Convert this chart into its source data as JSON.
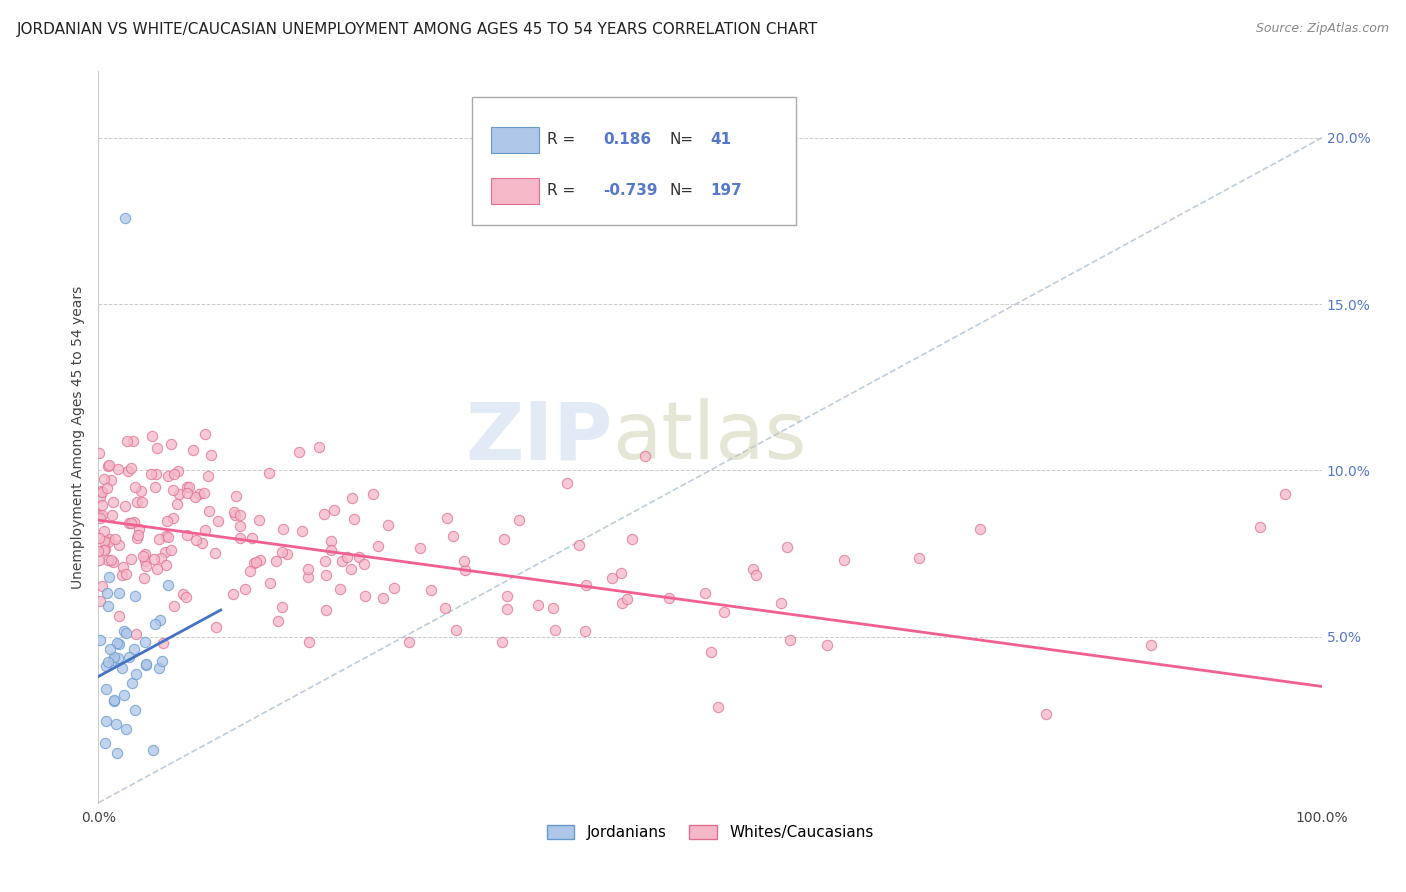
{
  "title": "JORDANIAN VS WHITE/CAUCASIAN UNEMPLOYMENT AMONG AGES 45 TO 54 YEARS CORRELATION CHART",
  "source": "Source: ZipAtlas.com",
  "ylabel": "Unemployment Among Ages 45 to 54 years",
  "xlim": [
    0.0,
    1.0
  ],
  "ylim": [
    0.0,
    0.22
  ],
  "xticks": [
    0.0,
    0.1,
    0.2,
    0.3,
    0.4,
    0.5,
    0.6,
    0.7,
    0.8,
    0.9,
    1.0
  ],
  "xticklabels": [
    "0.0%",
    "",
    "",
    "",
    "",
    "",
    "",
    "",
    "",
    "",
    "100.0%"
  ],
  "yticks": [
    0.0,
    0.05,
    0.1,
    0.15,
    0.2
  ],
  "yticklabels": [
    "",
    "5.0%",
    "10.0%",
    "15.0%",
    "20.0%"
  ],
  "jordanian_fill": "#aec6e8",
  "jordanian_edge": "#6699cc",
  "caucasian_fill": "#f4b8c8",
  "caucasian_edge": "#e07090",
  "jordanian_trend_color": "#4472c4",
  "caucasian_trend_color": "#f06090",
  "diagonal_color": "#b8c8d8",
  "tick_color": "#5577cc",
  "R_jordanian": 0.186,
  "N_jordanian": 41,
  "R_caucasian": -0.739,
  "N_caucasian": 197,
  "background_color": "#ffffff",
  "title_fontsize": 11,
  "axis_label_fontsize": 10,
  "tick_fontsize": 10,
  "legend_fontsize": 11,
  "cauc_trend_x0": 0.0,
  "cauc_trend_y0": 0.085,
  "cauc_trend_x1": 1.0,
  "cauc_trend_y1": 0.035,
  "jord_trend_x0": 0.0,
  "jord_trend_y0": 0.038,
  "jord_trend_x1": 0.1,
  "jord_trend_y1": 0.058
}
